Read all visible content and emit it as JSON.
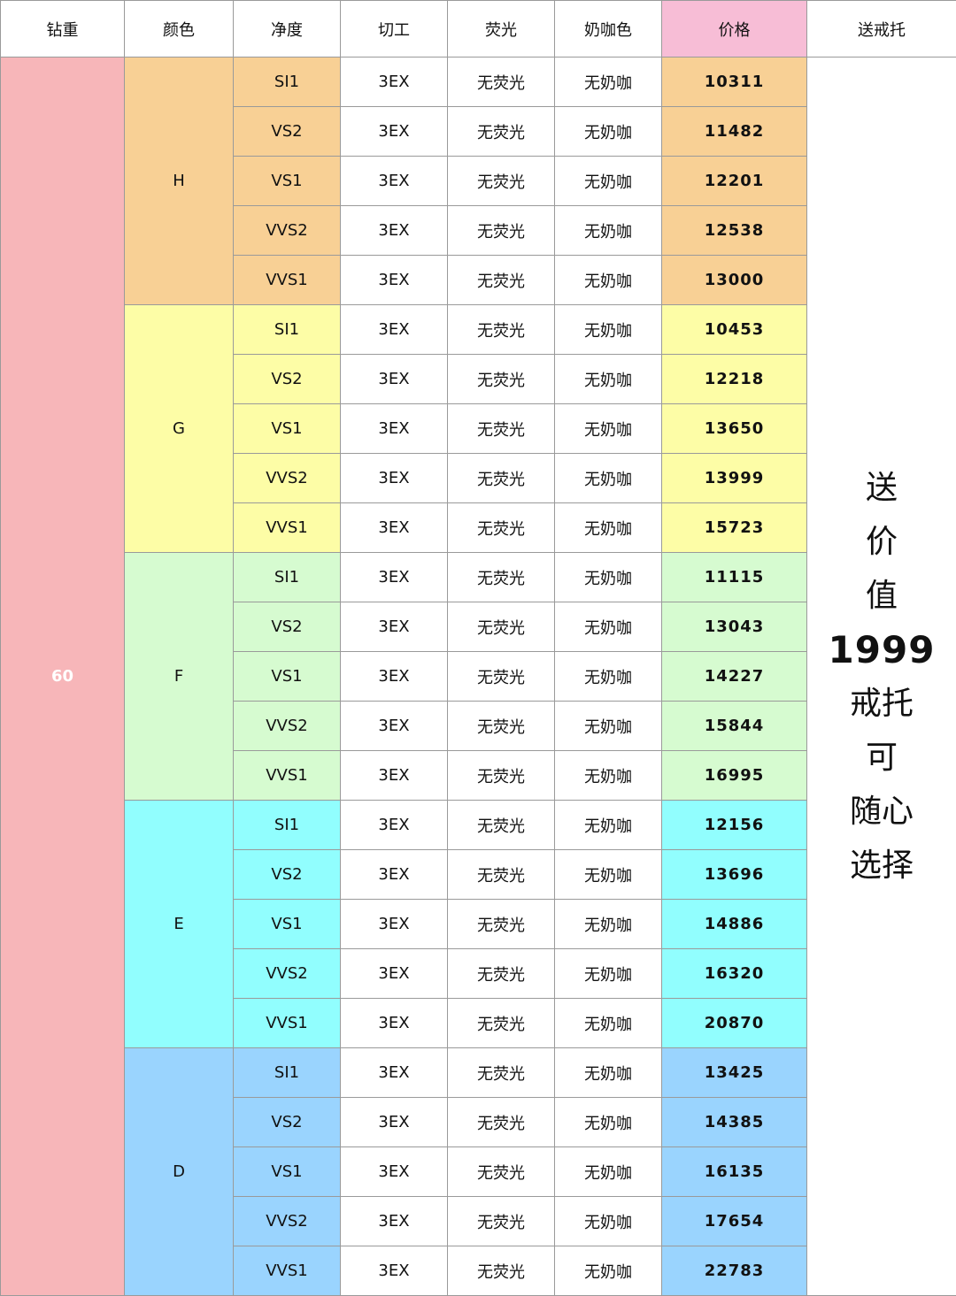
{
  "headers": [
    "钻重",
    "颜色",
    "净度",
    "切工",
    "荧光",
    "奶咖色",
    "价格",
    "送戒托"
  ],
  "header_price_color": "#f7bdd6",
  "carat": "60",
  "carat_color": "#f7b6b9",
  "cut": "3EX",
  "fluorescence": "无荧光",
  "milky": "无奶咖",
  "clarities": [
    "SI1",
    "VS2",
    "VS1",
    "VVS2",
    "VVS1"
  ],
  "groups": [
    {
      "color": "H",
      "bg": "#f8d095",
      "prices": [
        "10311",
        "11482",
        "12201",
        "12538",
        "13000"
      ]
    },
    {
      "color": "G",
      "bg": "#fdfda6",
      "prices": [
        "10453",
        "12218",
        "13650",
        "13999",
        "15723"
      ]
    },
    {
      "color": "F",
      "bg": "#d6fbd0",
      "prices": [
        "11115",
        "13043",
        "14227",
        "15844",
        "16995"
      ]
    },
    {
      "color": "E",
      "bg": "#91fefe",
      "prices": [
        "12156",
        "13696",
        "14886",
        "16320",
        "20870"
      ]
    },
    {
      "color": "D",
      "bg": "#9ad4fe",
      "prices": [
        "13425",
        "14385",
        "16135",
        "17654",
        "22783"
      ]
    }
  ],
  "gift": {
    "line_1": "送",
    "line_2": "价",
    "line_3": "值",
    "value": "1999",
    "line_4": "戒托",
    "line_5": "可",
    "line_6": "随心",
    "line_7": "选择"
  }
}
